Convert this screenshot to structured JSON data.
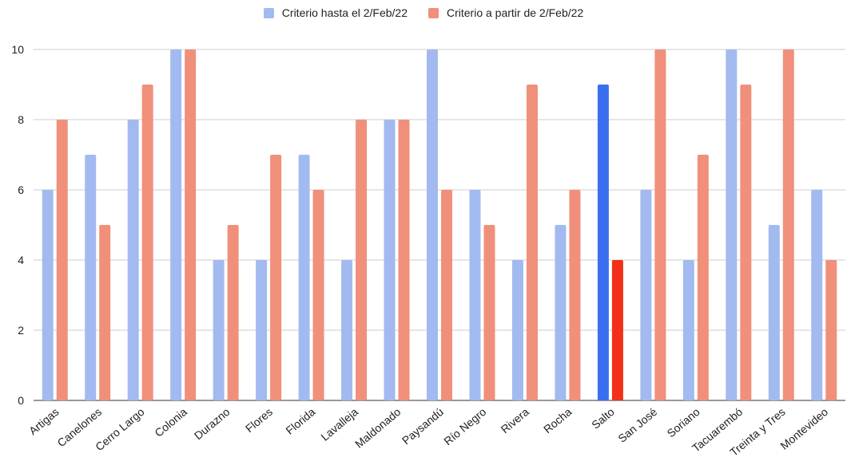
{
  "chart_data": {
    "type": "bar",
    "categories": [
      "Artigas",
      "Canelones",
      "Cerro Largo",
      "Colonia",
      "Durazno",
      "Flores",
      "Florida",
      "Lavalleja",
      "Maldonado",
      "Paysandú",
      "Río Negro",
      "Rivera",
      "Rocha",
      "Salto",
      "San José",
      "Soriano",
      "Tacuarembó",
      "Treinta y Tres",
      "Montevideo"
    ],
    "series": [
      {
        "name": "Criterio hasta el 2/Feb/22",
        "color": "#a3baf0",
        "values": [
          6,
          7,
          8,
          10,
          4,
          4,
          7,
          4,
          8,
          10,
          6,
          4,
          5,
          9,
          6,
          4,
          10,
          5,
          6
        ]
      },
      {
        "name": "Criterio a partir de 2/Feb/22",
        "color": "#f0907a",
        "values": [
          8,
          5,
          9,
          10,
          5,
          7,
          6,
          8,
          8,
          6,
          5,
          9,
          6,
          4,
          10,
          7,
          9,
          10,
          4
        ]
      }
    ],
    "highlight": {
      "category": "Salto",
      "colors": [
        "#3a6ff0",
        "#f2301a"
      ]
    },
    "ylim": [
      0,
      10
    ],
    "yticks": [
      0,
      2,
      4,
      6,
      8,
      10
    ],
    "grid": true,
    "legend_position": "top"
  }
}
